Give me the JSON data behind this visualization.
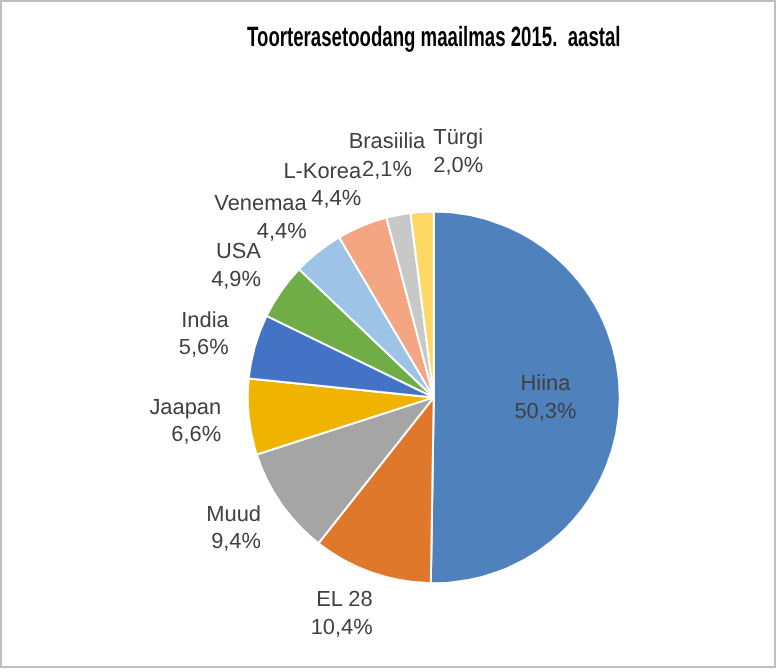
{
  "chart_data": {
    "type": "pie",
    "title": "Toorterasetoodang maailmas 2015.  aastal",
    "categories": [
      "Hiina",
      "EL 28",
      "Muud",
      "Jaapan",
      "India",
      "USA",
      "Venemaa",
      "L-Korea",
      "Brasiilia",
      "Türgi"
    ],
    "values": [
      50.3,
      10.4,
      9.4,
      6.6,
      5.6,
      4.9,
      4.4,
      4.4,
      2.1,
      2.0
    ],
    "value_labels": [
      "50,3%",
      "10,4%",
      "9,4%",
      "6,6%",
      "5,6%",
      "4,9%",
      "4,4%",
      "4,4%",
      "2,1%",
      "2,0%"
    ],
    "colors": [
      "#4f81bd",
      "#e0782c",
      "#a5a5a5",
      "#f0b400",
      "#4472c4",
      "#70ad47",
      "#9dc3e6",
      "#f4a582",
      "#c8c8c8",
      "#ffd966"
    ],
    "legend": false
  }
}
